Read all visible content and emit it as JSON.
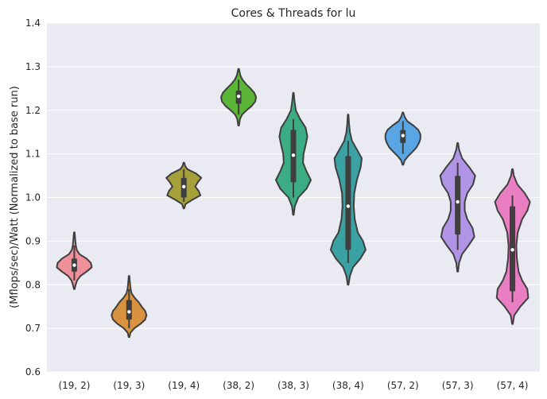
{
  "chart_data": {
    "type": "violin",
    "title": "Cores & Threads for lu",
    "xlabel": "",
    "ylabel": "(Mflops/sec)/Watt (Normalized to base run)",
    "ylim": [
      0.6,
      1.4
    ],
    "yticks": [
      "0.6",
      "0.7",
      "0.8",
      "0.9",
      "1.0",
      "1.1",
      "1.2",
      "1.3",
      "1.4"
    ],
    "grid": true,
    "categories": [
      "(19, 2)",
      "(19, 3)",
      "(19, 4)",
      "(38, 2)",
      "(38, 3)",
      "(38, 4)",
      "(57, 2)",
      "(57, 3)",
      "(57, 4)"
    ],
    "series": [
      {
        "min": 0.79,
        "max": 0.92,
        "q1": 0.83,
        "q3": 0.86,
        "wlo": 0.81,
        "whi": 0.89,
        "median": 0.845,
        "color": "#f0909a",
        "profile": [
          [
            0.79,
            0.02
          ],
          [
            0.8,
            0.08
          ],
          [
            0.81,
            0.16
          ],
          [
            0.82,
            0.35
          ],
          [
            0.83,
            0.7
          ],
          [
            0.84,
            1.0
          ],
          [
            0.85,
            0.95
          ],
          [
            0.86,
            0.7
          ],
          [
            0.87,
            0.3
          ],
          [
            0.88,
            0.14
          ],
          [
            0.89,
            0.09
          ],
          [
            0.9,
            0.06
          ],
          [
            0.91,
            0.04
          ],
          [
            0.92,
            0.02
          ]
        ]
      },
      {
        "min": 0.68,
        "max": 0.82,
        "q1": 0.72,
        "q3": 0.765,
        "wlo": 0.7,
        "whi": 0.79,
        "median": 0.738,
        "color": "#d9923f",
        "profile": [
          [
            0.68,
            0.02
          ],
          [
            0.69,
            0.08
          ],
          [
            0.7,
            0.3
          ],
          [
            0.71,
            0.65
          ],
          [
            0.72,
            0.92
          ],
          [
            0.73,
            1.0
          ],
          [
            0.74,
            0.92
          ],
          [
            0.75,
            0.72
          ],
          [
            0.76,
            0.55
          ],
          [
            0.77,
            0.32
          ],
          [
            0.78,
            0.15
          ],
          [
            0.79,
            0.09
          ],
          [
            0.8,
            0.06
          ],
          [
            0.81,
            0.04
          ],
          [
            0.82,
            0.02
          ]
        ]
      },
      {
        "min": 0.975,
        "max": 1.08,
        "q1": 1.0,
        "q3": 1.045,
        "wlo": 0.99,
        "whi": 1.065,
        "median": 1.025,
        "color": "#a6a03b",
        "profile": [
          [
            0.975,
            0.02
          ],
          [
            0.985,
            0.1
          ],
          [
            0.995,
            0.5
          ],
          [
            1.005,
            0.95
          ],
          [
            1.015,
            0.85
          ],
          [
            1.025,
            0.65
          ],
          [
            1.035,
            0.8
          ],
          [
            1.045,
            1.0
          ],
          [
            1.055,
            0.7
          ],
          [
            1.065,
            0.2
          ],
          [
            1.072,
            0.08
          ],
          [
            1.08,
            0.02
          ]
        ]
      },
      {
        "min": 1.165,
        "max": 1.295,
        "q1": 1.215,
        "q3": 1.245,
        "wlo": 1.19,
        "whi": 1.27,
        "median": 1.232,
        "color": "#5bb637",
        "profile": [
          [
            1.165,
            0.02
          ],
          [
            1.18,
            0.08
          ],
          [
            1.19,
            0.2
          ],
          [
            1.2,
            0.45
          ],
          [
            1.21,
            0.75
          ],
          [
            1.22,
            0.95
          ],
          [
            1.23,
            1.0
          ],
          [
            1.24,
            0.9
          ],
          [
            1.25,
            0.68
          ],
          [
            1.26,
            0.42
          ],
          [
            1.27,
            0.22
          ],
          [
            1.28,
            0.1
          ],
          [
            1.295,
            0.02
          ]
        ]
      },
      {
        "min": 0.96,
        "max": 1.24,
        "q1": 1.035,
        "q3": 1.155,
        "wlo": 1.0,
        "whi": 1.18,
        "median": 1.097,
        "color": "#3bac84",
        "profile": [
          [
            0.96,
            0.02
          ],
          [
            0.98,
            0.08
          ],
          [
            1.0,
            0.28
          ],
          [
            1.02,
            0.75
          ],
          [
            1.04,
            1.0
          ],
          [
            1.06,
            0.75
          ],
          [
            1.08,
            0.55
          ],
          [
            1.1,
            0.58
          ],
          [
            1.12,
            0.7
          ],
          [
            1.14,
            0.8
          ],
          [
            1.16,
            0.7
          ],
          [
            1.18,
            0.38
          ],
          [
            1.2,
            0.14
          ],
          [
            1.22,
            0.07
          ],
          [
            1.24,
            0.02
          ]
        ]
      },
      {
        "min": 0.8,
        "max": 1.19,
        "q1": 0.88,
        "q3": 1.095,
        "wlo": 0.85,
        "whi": 1.13,
        "median": 0.98,
        "color": "#3aa2a3",
        "profile": [
          [
            0.8,
            0.02
          ],
          [
            0.82,
            0.1
          ],
          [
            0.84,
            0.28
          ],
          [
            0.86,
            0.7
          ],
          [
            0.88,
            1.0
          ],
          [
            0.9,
            0.85
          ],
          [
            0.92,
            0.55
          ],
          [
            0.95,
            0.38
          ],
          [
            0.98,
            0.32
          ],
          [
            1.01,
            0.35
          ],
          [
            1.04,
            0.5
          ],
          [
            1.07,
            0.72
          ],
          [
            1.09,
            0.78
          ],
          [
            1.11,
            0.5
          ],
          [
            1.13,
            0.22
          ],
          [
            1.15,
            0.1
          ],
          [
            1.17,
            0.05
          ],
          [
            1.19,
            0.02
          ]
        ]
      },
      {
        "min": 1.075,
        "max": 1.195,
        "q1": 1.125,
        "q3": 1.155,
        "wlo": 1.1,
        "whi": 1.175,
        "median": 1.142,
        "color": "#5aa6e4",
        "profile": [
          [
            1.075,
            0.02
          ],
          [
            1.085,
            0.1
          ],
          [
            1.095,
            0.3
          ],
          [
            1.105,
            0.55
          ],
          [
            1.115,
            0.78
          ],
          [
            1.125,
            0.92
          ],
          [
            1.135,
            1.0
          ],
          [
            1.145,
            1.0
          ],
          [
            1.155,
            0.88
          ],
          [
            1.165,
            0.6
          ],
          [
            1.175,
            0.25
          ],
          [
            1.185,
            0.1
          ],
          [
            1.195,
            0.02
          ]
        ]
      },
      {
        "min": 0.83,
        "max": 1.125,
        "q1": 0.915,
        "q3": 1.05,
        "wlo": 0.88,
        "whi": 1.08,
        "median": 0.99,
        "color": "#b294e6",
        "profile": [
          [
            0.83,
            0.02
          ],
          [
            0.85,
            0.08
          ],
          [
            0.87,
            0.25
          ],
          [
            0.89,
            0.62
          ],
          [
            0.91,
            0.95
          ],
          [
            0.93,
            0.85
          ],
          [
            0.95,
            0.55
          ],
          [
            0.97,
            0.4
          ],
          [
            0.99,
            0.4
          ],
          [
            1.01,
            0.55
          ],
          [
            1.03,
            0.88
          ],
          [
            1.05,
            1.0
          ],
          [
            1.07,
            0.65
          ],
          [
            1.09,
            0.25
          ],
          [
            1.11,
            0.08
          ],
          [
            1.125,
            0.02
          ]
        ]
      },
      {
        "min": 0.71,
        "max": 1.065,
        "q1": 0.785,
        "q3": 0.98,
        "wlo": 0.76,
        "whi": 1.005,
        "median": 0.88,
        "color": "#ea7ec3",
        "profile": [
          [
            0.71,
            0.02
          ],
          [
            0.73,
            0.1
          ],
          [
            0.75,
            0.45
          ],
          [
            0.77,
            0.9
          ],
          [
            0.79,
            0.85
          ],
          [
            0.81,
            0.55
          ],
          [
            0.83,
            0.35
          ],
          [
            0.86,
            0.25
          ],
          [
            0.89,
            0.22
          ],
          [
            0.92,
            0.3
          ],
          [
            0.95,
            0.55
          ],
          [
            0.97,
            0.85
          ],
          [
            0.99,
            1.0
          ],
          [
            1.01,
            0.7
          ],
          [
            1.03,
            0.28
          ],
          [
            1.05,
            0.08
          ],
          [
            1.065,
            0.02
          ]
        ]
      }
    ]
  }
}
